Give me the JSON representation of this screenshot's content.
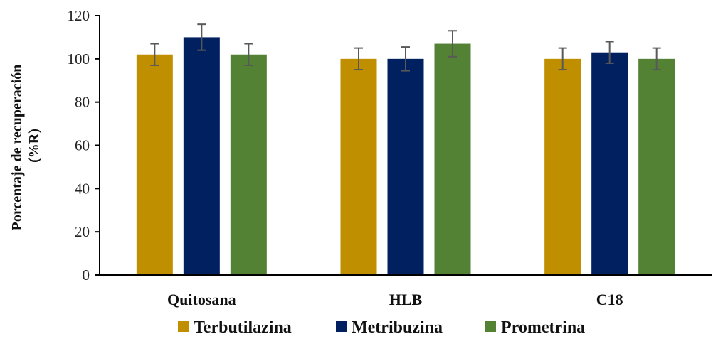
{
  "chart_data": {
    "type": "bar",
    "title": "",
    "xlabel": "",
    "ylabel_line1": "Porcentaje de recuperación",
    "ylabel_line2": "(%R)",
    "ylim": [
      0,
      120
    ],
    "yticks": [
      "0",
      "20",
      "40",
      "60",
      "80",
      "100",
      "120"
    ],
    "categories": [
      "Quitosana",
      "HLB",
      "C18"
    ],
    "series": [
      {
        "name": "Terbutilazina",
        "color": "#bf8f00",
        "values": [
          102,
          100,
          100
        ],
        "errors": [
          5,
          5,
          5
        ]
      },
      {
        "name": "Metribuzina",
        "color": "#002060",
        "values": [
          110,
          100,
          103
        ],
        "errors": [
          6,
          5.5,
          5
        ]
      },
      {
        "name": "Prometrina",
        "color": "#548235",
        "values": [
          102,
          107,
          100
        ],
        "errors": [
          5,
          6,
          5
        ]
      }
    ],
    "grid": false,
    "legend_position": "bottom",
    "error_bar_color": "#595959"
  }
}
